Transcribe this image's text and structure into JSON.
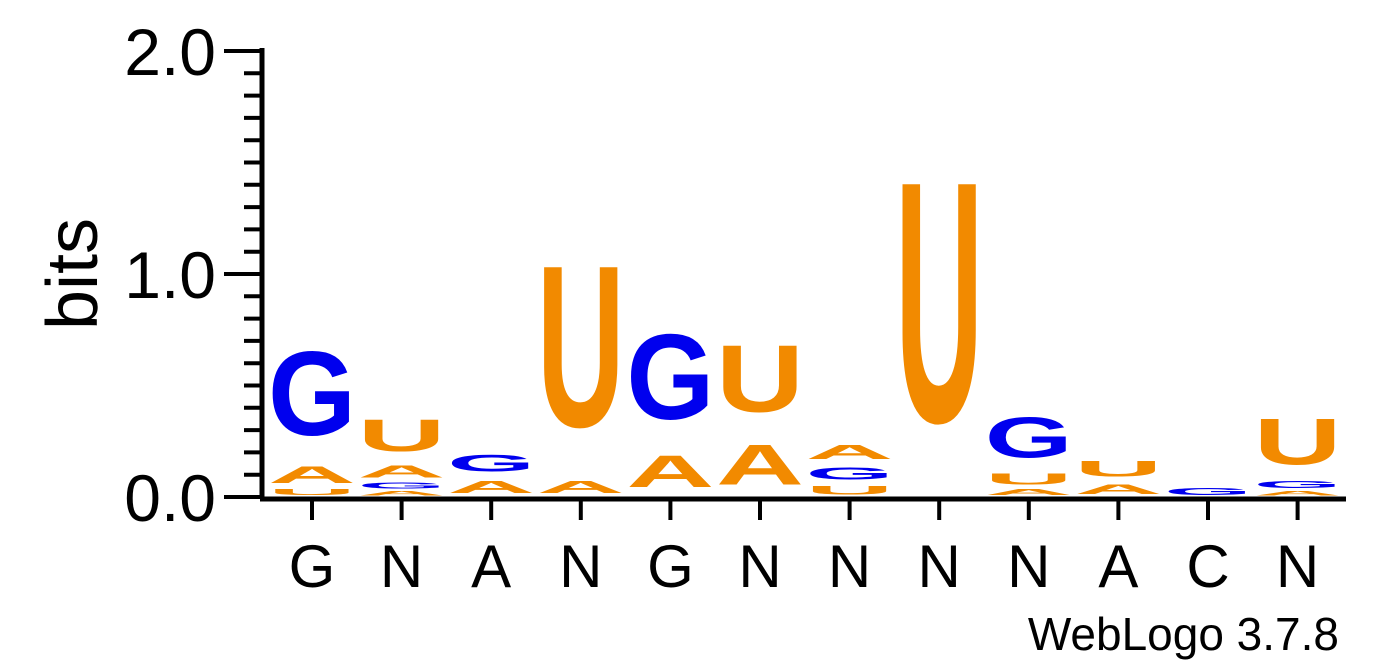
{
  "chart_data": {
    "type": "sequence-logo",
    "ylabel": "bits",
    "ylim": [
      0,
      2
    ],
    "y_ticks": [
      "0.0",
      "1.0",
      "2.0"
    ],
    "footer": "WebLogo 3.7.8",
    "colors": {
      "G": "#0000ee",
      "C": "#0000ee",
      "A": "#f28a00",
      "U": "#f28a00"
    },
    "consensus": [
      "G",
      "N",
      "A",
      "N",
      "G",
      "N",
      "N",
      "N",
      "N",
      "A",
      "C",
      "N"
    ],
    "columns": [
      {
        "stack": [
          {
            "letter": "U",
            "bits": 0.04
          },
          {
            "letter": "A",
            "bits": 0.12
          },
          {
            "letter": "G",
            "bits": 0.6
          }
        ]
      },
      {
        "stack": [
          {
            "letter": "A",
            "bits": 0.03
          },
          {
            "letter": "G",
            "bits": 0.04
          },
          {
            "letter": "A",
            "bits": 0.09
          },
          {
            "letter": "U",
            "bits": 0.23
          }
        ]
      },
      {
        "stack": [
          {
            "letter": "A",
            "bits": 0.09
          },
          {
            "letter": "G",
            "bits": 0.12
          }
        ]
      },
      {
        "stack": [
          {
            "letter": "A",
            "bits": 0.09
          },
          {
            "letter": "U",
            "bits": 1.16
          }
        ]
      },
      {
        "stack": [
          {
            "letter": "A",
            "bits": 0.23
          },
          {
            "letter": "G",
            "bits": 0.61
          }
        ]
      },
      {
        "stack": [
          {
            "letter": "A",
            "bits": 0.29
          },
          {
            "letter": "U",
            "bits": 0.48
          }
        ]
      },
      {
        "stack": [
          {
            "letter": "U",
            "bits": 0.06
          },
          {
            "letter": "G",
            "bits": 0.09
          },
          {
            "letter": "A",
            "bits": 0.1
          }
        ]
      },
      {
        "stack": [
          {
            "letter": "U",
            "bits": 1.73
          }
        ]
      },
      {
        "stack": [
          {
            "letter": "A",
            "bits": 0.04
          },
          {
            "letter": "U",
            "bits": 0.08
          },
          {
            "letter": "G",
            "bits": 0.29
          }
        ]
      },
      {
        "stack": [
          {
            "letter": "A",
            "bits": 0.07
          },
          {
            "letter": "U",
            "bits": 0.11
          }
        ]
      },
      {
        "stack": [
          {
            "letter": "G",
            "bits": 0.05
          }
        ]
      },
      {
        "stack": [
          {
            "letter": "A",
            "bits": 0.03
          },
          {
            "letter": "G",
            "bits": 0.05
          },
          {
            "letter": "U",
            "bits": 0.33
          }
        ]
      }
    ]
  }
}
